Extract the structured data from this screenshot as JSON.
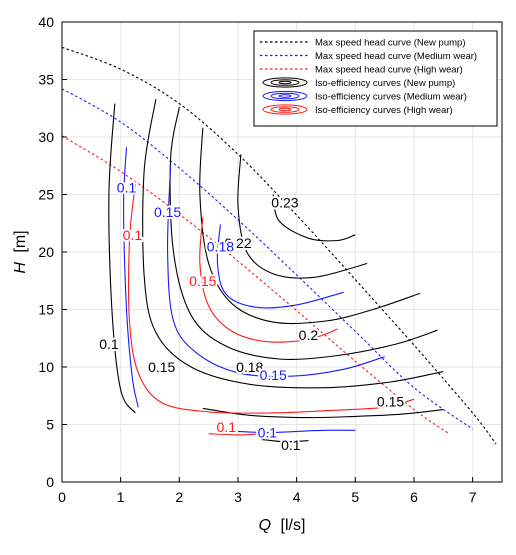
{
  "chart_data": {
    "type": "line",
    "xlabel": {
      "var": "Q",
      "unit": "[l/s]"
    },
    "ylabel": {
      "var": "H",
      "unit": "[m]"
    },
    "xlim": [
      0,
      7.5
    ],
    "ylim": [
      0,
      40
    ],
    "xticks": [
      0,
      1,
      2,
      3,
      4,
      5,
      6,
      7
    ],
    "yticks": [
      0,
      5,
      10,
      15,
      20,
      25,
      30,
      35,
      40
    ],
    "grid": true,
    "legend_position": "top-right",
    "colors": {
      "new": "#000000",
      "medium": "#1a1aff",
      "high": "#ff1a1a"
    },
    "series": [
      {
        "name": "Max speed head curve (New pump)",
        "group": "new",
        "style": "dotted",
        "x": [
          0,
          1,
          2,
          3,
          4,
          5,
          6,
          7,
          7.4
        ],
        "y": [
          37.8,
          35.9,
          32.9,
          28.5,
          23.2,
          17.6,
          11.9,
          6.0,
          3.3
        ]
      },
      {
        "name": "Max speed head curve (Medium wear)",
        "group": "medium",
        "style": "dotted",
        "x": [
          0,
          1,
          2,
          3,
          4,
          5,
          6,
          7
        ],
        "y": [
          34.2,
          31.3,
          27.3,
          22.8,
          18.0,
          13.1,
          8.2,
          4.6
        ]
      },
      {
        "name": "Max speed head curve (High wear)",
        "group": "high",
        "style": "dotted",
        "x": [
          0,
          1,
          2,
          3,
          4,
          5,
          6,
          6.6
        ],
        "y": [
          30.1,
          27.0,
          23.3,
          19.2,
          14.9,
          10.5,
          6.3,
          4.2
        ]
      },
      {
        "name": "Iso-efficiency curves (New pump)",
        "group": "new",
        "style": "solid",
        "is_iso": true
      },
      {
        "name": "Iso-efficiency curves (Medium wear)",
        "group": "medium",
        "style": "solid",
        "is_iso": true
      },
      {
        "name": "Iso-efficiency curves (High wear)",
        "group": "high",
        "style": "solid",
        "is_iso": true
      }
    ],
    "iso_curves": [
      {
        "group": "new",
        "level": "0.1",
        "x": [
          0.9,
          0.8,
          0.85,
          1.0,
          1.25
        ],
        "y": [
          32.9,
          25,
          15,
          8,
          6
        ],
        "label_at": [
          0.8,
          12
        ]
      },
      {
        "group": "new",
        "level": "0.15",
        "x": [
          1.6,
          1.4,
          1.4,
          1.6,
          2.2,
          3.2,
          4.5,
          5.6,
          6.5
        ],
        "y": [
          33.3,
          27,
          18,
          13,
          10,
          8.5,
          8.2,
          8.7,
          9.6
        ],
        "label_at": [
          1.7,
          10
        ]
      },
      {
        "group": "new",
        "level": "0.18",
        "x": [
          2.0,
          1.85,
          1.9,
          2.2,
          2.8,
          3.7,
          4.7,
          5.7,
          6.4
        ],
        "y": [
          32.6,
          28,
          20,
          14.5,
          11.8,
          10.7,
          11.0,
          12.0,
          13.2
        ],
        "label_at": [
          3.2,
          10
        ]
      },
      {
        "group": "new",
        "level": "0.2",
        "x": [
          2.4,
          2.35,
          2.5,
          2.9,
          3.6,
          4.5,
          5.3,
          6.1
        ],
        "y": [
          30.8,
          25,
          19,
          15.5,
          13.9,
          14.0,
          15.0,
          16.4
        ],
        "label_at": [
          4.2,
          12.8
        ]
      },
      {
        "group": "new",
        "level": "0.22",
        "x": [
          3.05,
          3.0,
          3.15,
          3.6,
          4.3,
          5.2
        ],
        "y": [
          28.5,
          24,
          20,
          18.1,
          17.8,
          19.0
        ],
        "label_at": [
          3.0,
          20.8
        ]
      },
      {
        "group": "new",
        "level": "0.23",
        "x": [
          3.6,
          3.7,
          4.2,
          4.7,
          5.0
        ],
        "y": [
          25.0,
          22.7,
          21.2,
          21.0,
          21.5
        ],
        "label_at": [
          3.8,
          24.3
        ]
      },
      {
        "group": "new",
        "level": "0.15",
        "x": [
          2.4,
          3.2,
          4.2,
          5.0,
          5.8,
          6.5
        ],
        "y": [
          6.4,
          5.8,
          5.6,
          5.7,
          5.9,
          6.3
        ],
        "label_at": [
          5.6,
          7.0
        ]
      },
      {
        "group": "new",
        "level": "0.1",
        "x": [
          3.4,
          3.8,
          4.2
        ],
        "y": [
          3.7,
          3.5,
          3.6
        ],
        "label_at": [
          3.9,
          3.2
        ]
      },
      {
        "group": "medium",
        "level": "0.1",
        "x": [
          1.1,
          1.05,
          1.1,
          1.2,
          1.3
        ],
        "y": [
          29.1,
          24,
          15,
          9,
          6.5
        ],
        "label_at": [
          1.1,
          25.6
        ]
      },
      {
        "group": "medium",
        "level": "0.15",
        "x": [
          1.85,
          1.8,
          1.9,
          2.3,
          3.0,
          3.9,
          4.8,
          5.5
        ],
        "y": [
          27.4,
          20,
          14,
          11.2,
          9.5,
          9.2,
          9.8,
          10.9
        ],
        "label_at": [
          1.8,
          23.5
        ]
      },
      {
        "group": "medium",
        "level": "0.18",
        "x": [
          2.7,
          2.65,
          2.8,
          3.3,
          4.0,
          4.8
        ],
        "y": [
          22.4,
          19,
          16.3,
          15.2,
          15.4,
          16.5
        ],
        "label_at": [
          2.7,
          20.5
        ]
      },
      {
        "group": "medium",
        "level": "0.15",
        "x": [],
        "y": [],
        "label_at": [
          3.6,
          9.3
        ]
      },
      {
        "group": "medium",
        "level": "0.1",
        "x": [
          3.0,
          3.5,
          4.0,
          4.5,
          5.0
        ],
        "y": [
          4.4,
          4.3,
          4.4,
          4.5,
          4.5
        ],
        "label_at": [
          3.5,
          4.3
        ]
      },
      {
        "group": "high",
        "level": "0.1",
        "x": [
          1.25,
          1.15,
          1.15,
          1.3,
          1.7,
          2.5,
          3.5,
          4.5,
          5.5,
          6.0
        ],
        "y": [
          25.9,
          21,
          14,
          9.5,
          6.9,
          6.1,
          6.0,
          6.2,
          6.5,
          7.2
        ],
        "label_at": [
          1.2,
          21.5
        ]
      },
      {
        "group": "high",
        "level": "0.15",
        "x": [
          2.4,
          2.35,
          2.5,
          2.9,
          3.5,
          4.2,
          4.7
        ],
        "y": [
          23.0,
          19,
          15.3,
          13.1,
          12.2,
          12.4,
          13.3
        ],
        "label_at": [
          2.4,
          17.5
        ]
      },
      {
        "group": "high",
        "level": "0.1",
        "x": [
          2.5,
          3.0,
          3.4
        ],
        "y": [
          4.2,
          4.1,
          4.2
        ],
        "label_at": [
          2.8,
          4.8
        ]
      }
    ]
  }
}
